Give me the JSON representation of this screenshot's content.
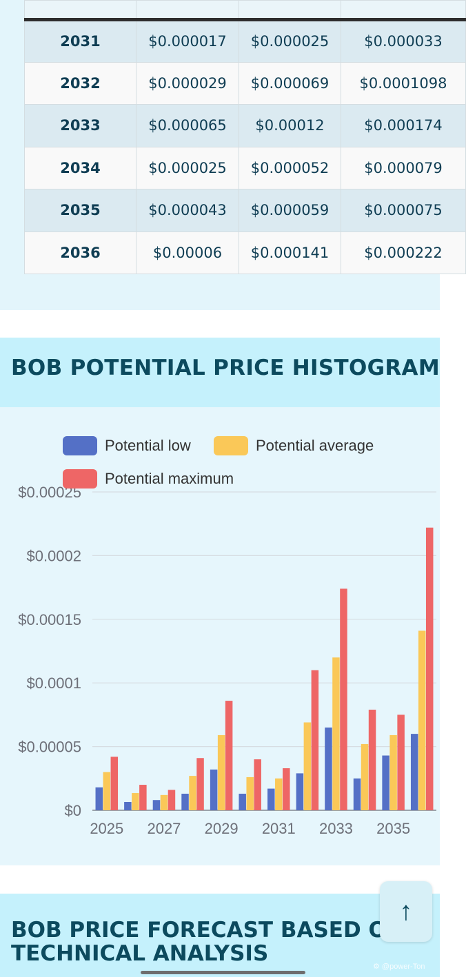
{
  "table": {
    "rows": [
      {
        "year": "2031",
        "low": "$0.000017",
        "avg": "$0.000025",
        "max": "$0.000033"
      },
      {
        "year": "2032",
        "low": "$0.000029",
        "avg": "$0.000069",
        "max": "$0.0001098"
      },
      {
        "year": "2033",
        "low": "$0.000065",
        "avg": "$0.00012",
        "max": "$0.000174"
      },
      {
        "year": "2034",
        "low": "$0.000025",
        "avg": "$0.000052",
        "max": "$0.000079"
      },
      {
        "year": "2035",
        "low": "$0.000043",
        "avg": "$0.000059",
        "max": "$0.000075"
      },
      {
        "year": "2036",
        "low": "$0.00006",
        "avg": "$0.000141",
        "max": "$0.000222"
      }
    ]
  },
  "histogram": {
    "heading": "BOB POTENTIAL PRICE HISTOGRAM"
  },
  "chart_data": {
    "type": "bar",
    "categories": [
      "2025",
      "2026",
      "2027",
      "2028",
      "2029",
      "2030",
      "2031",
      "2032",
      "2033",
      "2034",
      "2035",
      "2036"
    ],
    "x_tick_labels": [
      "2025",
      "2027",
      "2029",
      "2031",
      "2033",
      "2035"
    ],
    "y_tick_labels": [
      "$0",
      "$0.00005",
      "$0.0001",
      "$0.00015",
      "$0.0002",
      "$0.00025"
    ],
    "ylim": [
      0,
      0.00025
    ],
    "grid": true,
    "legend_position": "top",
    "series": [
      {
        "name": "Potential low",
        "color": "#5470c6",
        "values": [
          1.8e-05,
          6.5e-06,
          8e-06,
          1.3e-05,
          3.2e-05,
          1.3e-05,
          1.7e-05,
          2.9e-05,
          6.5e-05,
          2.5e-05,
          4.3e-05,
          6e-05
        ]
      },
      {
        "name": "Potential average",
        "color": "#fac858",
        "values": [
          3e-05,
          1.35e-05,
          1.2e-05,
          2.7e-05,
          5.9e-05,
          2.6e-05,
          2.5e-05,
          6.9e-05,
          0.00012,
          5.2e-05,
          5.9e-05,
          0.000141
        ]
      },
      {
        "name": "Potential maximum",
        "color": "#ee6666",
        "values": [
          4.2e-05,
          2e-05,
          1.6e-05,
          4.1e-05,
          8.6e-05,
          4e-05,
          3.3e-05,
          0.00011,
          0.000174,
          7.9e-05,
          7.5e-05,
          0.000222
        ]
      }
    ]
  },
  "forecast": {
    "heading": "BOB PRICE FORECAST BASED ON TECHNICAL ANALYSIS"
  },
  "scroll_top_button": {
    "icon": "arrow-up-icon",
    "label": "↑"
  },
  "watermark": "⚙ @power-Ton"
}
